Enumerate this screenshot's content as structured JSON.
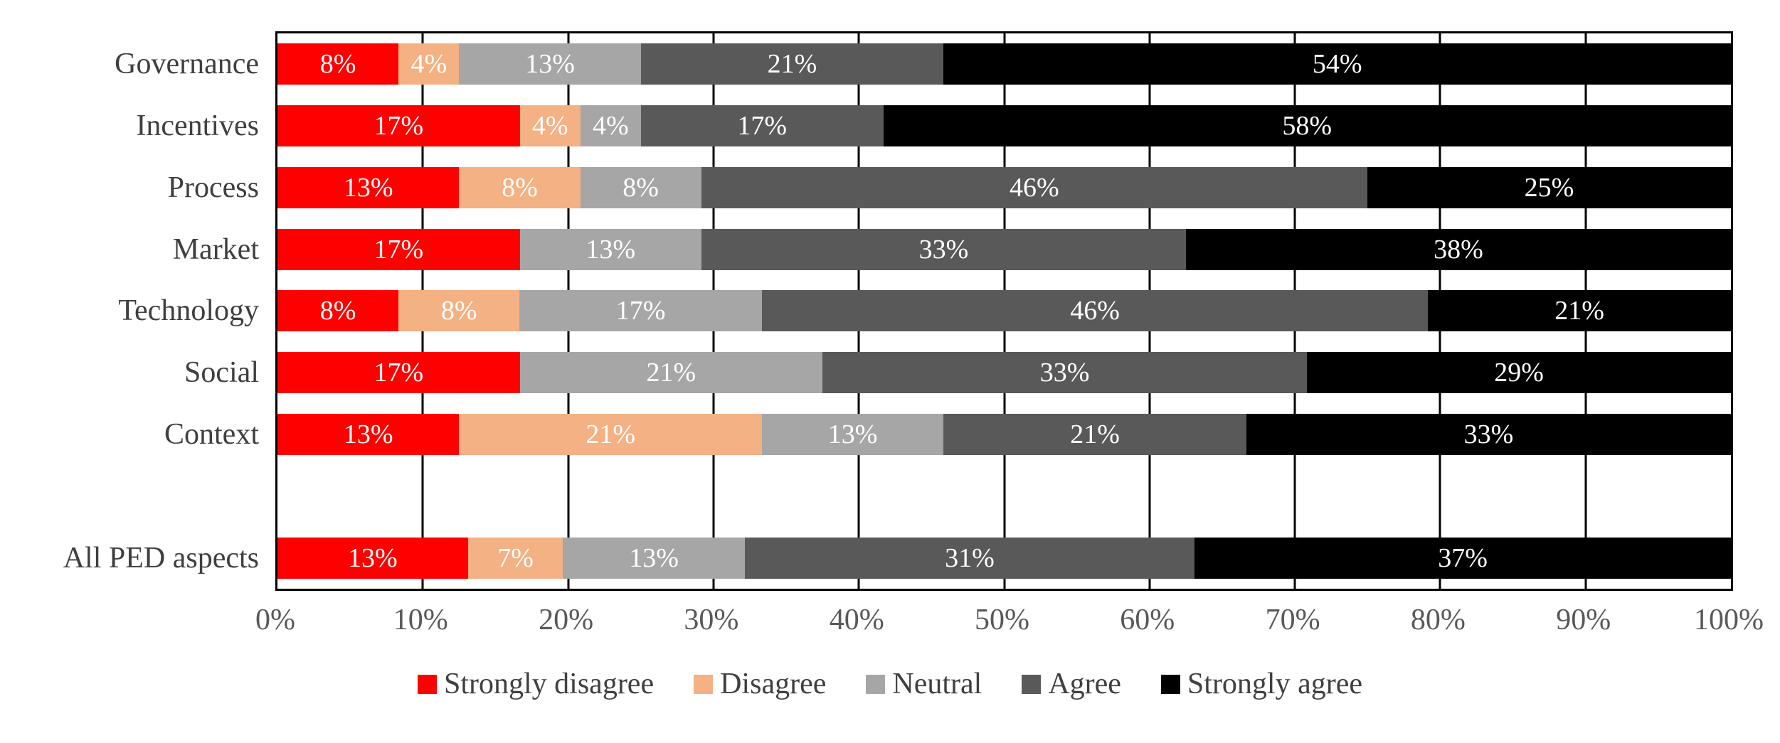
{
  "chart_data": {
    "type": "bar",
    "orientation": "horizontal",
    "stacked": true,
    "title": "",
    "xlabel": "",
    "ylabel": "",
    "x_axis": {
      "range": [
        0,
        100
      ],
      "tick_labels": [
        "0%",
        "10%",
        "20%",
        "30%",
        "40%",
        "50%",
        "60%",
        "70%",
        "80%",
        "90%",
        "100%"
      ],
      "gridlines": true
    },
    "legend": {
      "position": "bottom",
      "entries": [
        {
          "series": "Strongly disagree",
          "color": "#ff0000"
        },
        {
          "series": "Disagree",
          "color": "#f4b183"
        },
        {
          "series": "Neutral",
          "color": "#a6a6a6"
        },
        {
          "series": "Agree",
          "color": "#595959"
        },
        {
          "series": "Strongly agree",
          "color": "#000000"
        }
      ]
    },
    "categories": [
      "Governance",
      "Incentives",
      "Process",
      "Market",
      "Technology",
      "Social",
      "Context",
      "",
      "All PED aspects"
    ],
    "rows": [
      {
        "category": "Governance",
        "segments": [
          {
            "series": "Strongly disagree",
            "label": "8%",
            "value": 8.33
          },
          {
            "series": "Disagree",
            "label": "4%",
            "value": 4.17
          },
          {
            "series": "Neutral",
            "label": "13%",
            "value": 12.5
          },
          {
            "series": "Agree",
            "label": "21%",
            "value": 20.83
          },
          {
            "series": "Strongly agree",
            "label": "54%",
            "value": 54.17
          }
        ]
      },
      {
        "category": "Incentives",
        "segments": [
          {
            "series": "Strongly disagree",
            "label": "17%",
            "value": 16.67
          },
          {
            "series": "Disagree",
            "label": "4%",
            "value": 4.17
          },
          {
            "series": "Neutral",
            "label": "4%",
            "value": 4.17
          },
          {
            "series": "Agree",
            "label": "17%",
            "value": 16.67
          },
          {
            "series": "Strongly agree",
            "label": "58%",
            "value": 58.33
          }
        ]
      },
      {
        "category": "Process",
        "segments": [
          {
            "series": "Strongly disagree",
            "label": "13%",
            "value": 12.5
          },
          {
            "series": "Disagree",
            "label": "8%",
            "value": 8.33
          },
          {
            "series": "Neutral",
            "label": "8%",
            "value": 8.33
          },
          {
            "series": "Agree",
            "label": "46%",
            "value": 45.83
          },
          {
            "series": "Strongly agree",
            "label": "25%",
            "value": 25.0
          }
        ]
      },
      {
        "category": "Market",
        "segments": [
          {
            "series": "Strongly disagree",
            "label": "17%",
            "value": 16.67
          },
          {
            "series": "Neutral",
            "label": "13%",
            "value": 12.5
          },
          {
            "series": "Agree",
            "label": "33%",
            "value": 33.33
          },
          {
            "series": "Strongly agree",
            "label": "38%",
            "value": 37.5
          }
        ]
      },
      {
        "category": "Technology",
        "segments": [
          {
            "series": "Strongly disagree",
            "label": "8%",
            "value": 8.33
          },
          {
            "series": "Disagree",
            "label": "8%",
            "value": 8.33
          },
          {
            "series": "Neutral",
            "label": "17%",
            "value": 16.67
          },
          {
            "series": "Agree",
            "label": "46%",
            "value": 45.83
          },
          {
            "series": "Strongly agree",
            "label": "21%",
            "value": 20.83
          }
        ]
      },
      {
        "category": "Social",
        "segments": [
          {
            "series": "Strongly disagree",
            "label": "17%",
            "value": 16.67
          },
          {
            "series": "Neutral",
            "label": "21%",
            "value": 20.83
          },
          {
            "series": "Agree",
            "label": "33%",
            "value": 33.33
          },
          {
            "series": "Strongly agree",
            "label": "29%",
            "value": 29.17
          }
        ]
      },
      {
        "category": "Context",
        "segments": [
          {
            "series": "Strongly disagree",
            "label": "13%",
            "value": 12.5
          },
          {
            "series": "Disagree",
            "label": "21%",
            "value": 20.83
          },
          {
            "series": "Neutral",
            "label": "13%",
            "value": 12.5
          },
          {
            "series": "Agree",
            "label": "21%",
            "value": 20.83
          },
          {
            "series": "Strongly agree",
            "label": "33%",
            "value": 33.33
          }
        ]
      },
      {
        "category": "",
        "segments": []
      },
      {
        "category": "All PED aspects",
        "segments": [
          {
            "series": "Strongly disagree",
            "label": "13%",
            "value": 13.1
          },
          {
            "series": "Disagree",
            "label": "7%",
            "value": 6.55
          },
          {
            "series": "Neutral",
            "label": "13%",
            "value": 12.5
          },
          {
            "series": "Agree",
            "label": "31%",
            "value": 30.95
          },
          {
            "series": "Strongly agree",
            "label": "37%",
            "value": 36.9
          }
        ]
      }
    ]
  },
  "colors": {
    "bar_label_text": "#ffffff",
    "category_label_text": "#3f3f3f",
    "tick_label_text": "#595959",
    "legend_text": "#404040",
    "grid_and_border": "#000000",
    "background": "#ffffff"
  }
}
